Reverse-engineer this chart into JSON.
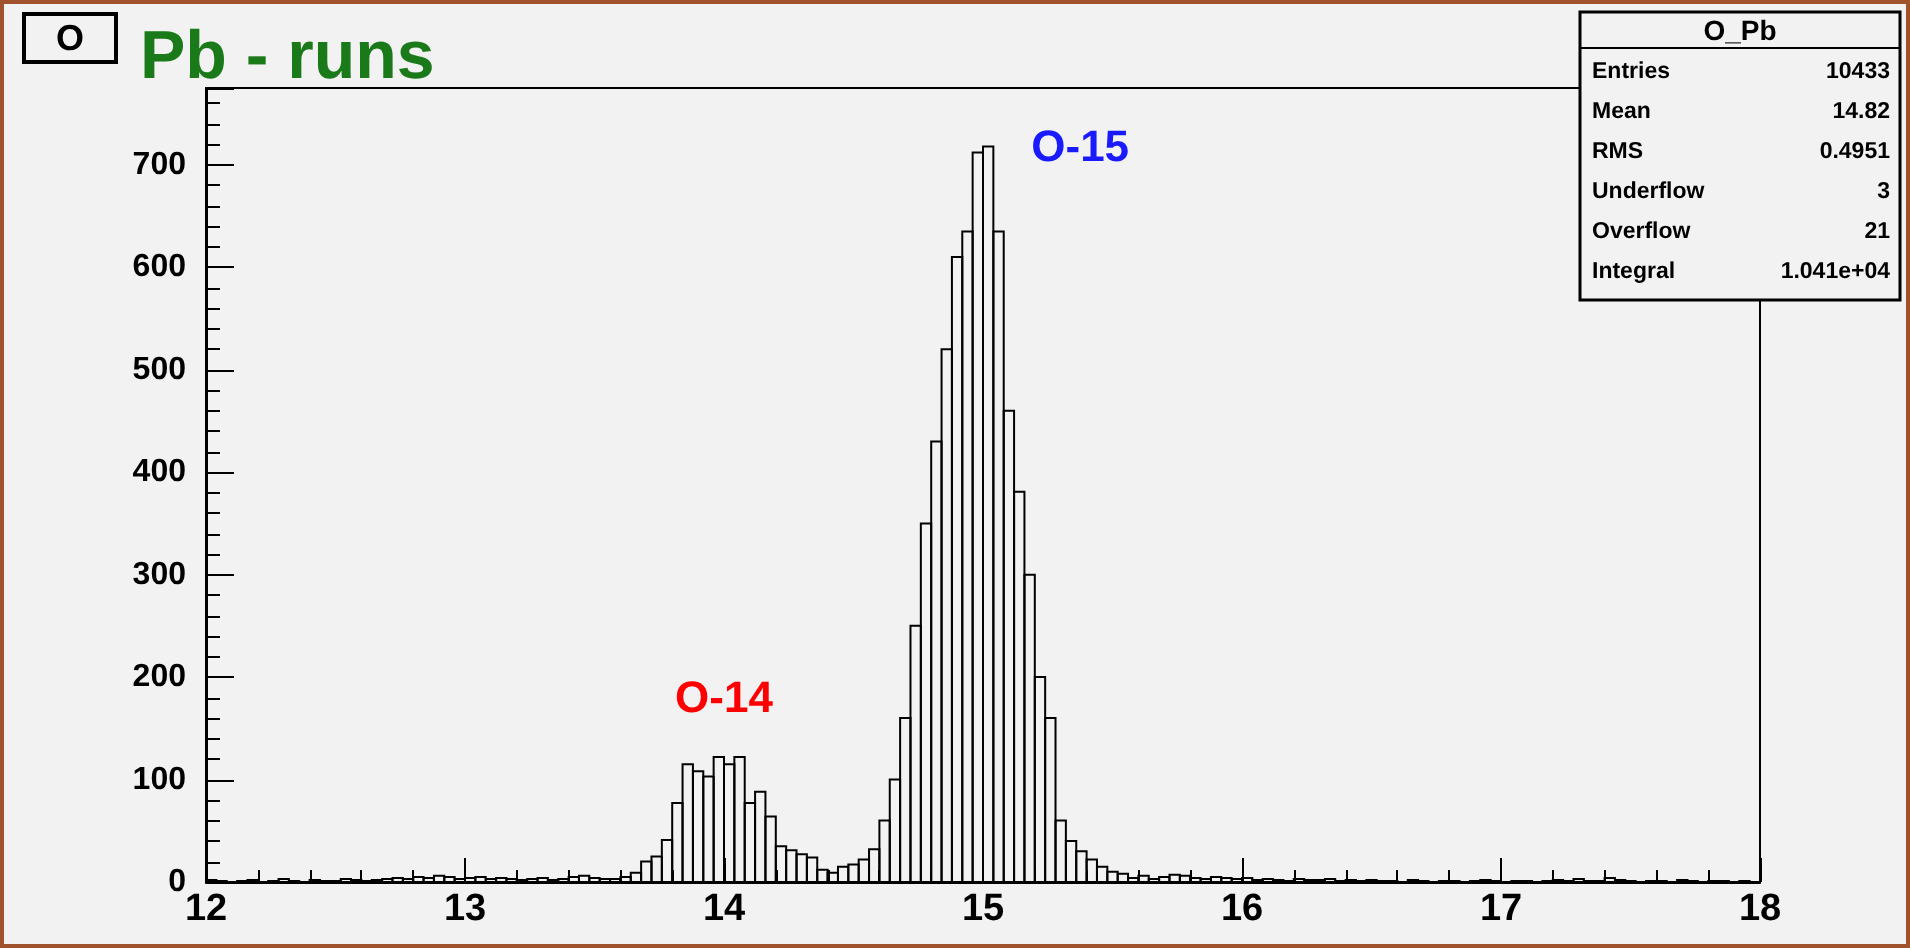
{
  "chart_data": {
    "type": "histogram",
    "title": "Pb - runs",
    "bins": [
      12,
      12.04,
      12.08,
      12.12,
      12.16,
      12.2,
      12.24,
      12.28,
      12.32,
      12.36,
      12.4,
      12.44,
      12.48,
      12.52,
      12.56,
      12.6,
      12.64,
      12.68,
      12.72,
      12.76,
      12.8,
      12.84,
      12.88,
      12.92,
      12.96,
      13,
      13.04,
      13.08,
      13.12,
      13.16,
      13.2,
      13.24,
      13.28,
      13.32,
      13.36,
      13.4,
      13.44,
      13.48,
      13.52,
      13.56,
      13.6,
      13.64,
      13.68,
      13.72,
      13.76,
      13.8,
      13.84,
      13.88,
      13.92,
      13.96,
      14,
      14.04,
      14.08,
      14.12,
      14.16,
      14.2,
      14.24,
      14.28,
      14.32,
      14.36,
      14.4,
      14.44,
      14.48,
      14.52,
      14.56,
      14.6,
      14.64,
      14.68,
      14.72,
      14.76,
      14.8,
      14.84,
      14.88,
      14.92,
      14.96,
      15,
      15.04,
      15.08,
      15.12,
      15.16,
      15.2,
      15.24,
      15.28,
      15.32,
      15.36,
      15.4,
      15.44,
      15.48,
      15.52,
      15.56,
      15.6,
      15.64,
      15.68,
      15.72,
      15.76,
      15.8,
      15.84,
      15.88,
      15.92,
      15.96,
      16,
      16.04,
      16.08,
      16.12,
      16.16,
      16.2,
      16.24,
      16.28,
      16.32,
      16.36,
      16.4,
      16.44,
      16.48,
      16.52,
      16.56,
      16.6,
      16.64,
      16.68,
      16.72,
      16.76,
      16.8,
      16.84,
      16.88,
      16.92,
      16.96,
      17,
      17.04,
      17.08,
      17.12,
      17.16,
      17.2,
      17.24,
      17.28,
      17.32,
      17.36,
      17.4,
      17.44,
      17.48,
      17.52,
      17.56,
      17.6,
      17.64,
      17.68,
      17.72,
      17.76,
      17.8,
      17.84,
      17.88,
      17.92,
      17.96,
      18
    ],
    "values": [
      2,
      1,
      0,
      1,
      2,
      0,
      1,
      3,
      1,
      0,
      2,
      1,
      1,
      3,
      2,
      1,
      2,
      3,
      4,
      3,
      5,
      4,
      6,
      5,
      3,
      4,
      5,
      3,
      4,
      3,
      2,
      3,
      4,
      2,
      3,
      5,
      6,
      4,
      3,
      3,
      5,
      9,
      20,
      25,
      41,
      77,
      115,
      108,
      103,
      122,
      115,
      122,
      77,
      88,
      64,
      35,
      31,
      27,
      24,
      12,
      9,
      15,
      17,
      22,
      32,
      60,
      100,
      160,
      250,
      350,
      430,
      520,
      610,
      635,
      712,
      718,
      635,
      460,
      381,
      300,
      200,
      160,
      60,
      40,
      30,
      22,
      15,
      10,
      8,
      4,
      6,
      3,
      5,
      7,
      6,
      4,
      3,
      5,
      4,
      3,
      4,
      2,
      3,
      2,
      1,
      3,
      2,
      2,
      3,
      1,
      2,
      1,
      2,
      1,
      1,
      0,
      2,
      1,
      0,
      1,
      1,
      0,
      1,
      2,
      1,
      0,
      1,
      1,
      0,
      1,
      2,
      1,
      3,
      1,
      1,
      4,
      2,
      1,
      0,
      1,
      1,
      0,
      2,
      1,
      0,
      1,
      1,
      0,
      1,
      0
    ],
    "color": "#000000",
    "xlim": [
      12,
      18
    ],
    "xticks": [
      12,
      13,
      14,
      15,
      16,
      17,
      18
    ],
    "ylim": [
      0,
      775
    ],
    "yticks": [
      0,
      100,
      200,
      300,
      400,
      500,
      600,
      700
    ],
    "grid": false,
    "annotations": [
      "O",
      "O_Pb",
      "Entries",
      "10433",
      "Mean",
      "14.82",
      "RMS",
      "0.4951",
      "Underflow",
      "3",
      "Overflow",
      "21",
      "Integral",
      "1.041e+04",
      {
        "text": "O-14",
        "x": 14.0,
        "y": 122
      },
      {
        "text": "O-15",
        "x": 15.02,
        "y": 718
      }
    ]
  }
}
